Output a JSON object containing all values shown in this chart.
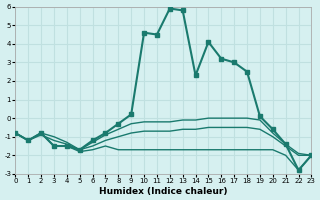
{
  "xlabel": "Humidex (Indice chaleur)",
  "ylabel": "",
  "background_color": "#d6f0f0",
  "grid_color": "#c0e0e0",
  "line_color": "#1a7a6e",
  "xlim": [
    0,
    23
  ],
  "ylim": [
    -3,
    6
  ],
  "xticks": [
    0,
    1,
    2,
    3,
    4,
    5,
    6,
    7,
    8,
    9,
    10,
    11,
    12,
    13,
    14,
    15,
    16,
    17,
    18,
    19,
    20,
    21,
    22,
    23
  ],
  "yticks": [
    -3,
    -2,
    -1,
    0,
    1,
    2,
    3,
    4,
    5,
    6
  ],
  "series": [
    {
      "x": [
        0,
        1,
        2,
        3,
        4,
        5,
        6,
        7,
        8,
        9,
        10,
        11,
        12,
        13,
        14,
        15,
        16,
        17,
        18,
        19,
        20,
        21,
        22,
        23
      ],
      "y": [
        -0.8,
        -1.2,
        -0.8,
        -1.5,
        -1.5,
        -1.7,
        -1.2,
        -0.8,
        -0.3,
        0.2,
        4.6,
        4.5,
        5.9,
        5.8,
        2.3,
        4.1,
        3.2,
        3.0,
        2.5,
        0.1,
        -0.6,
        -1.4,
        -2.8,
        -2.0
      ],
      "marker": "s",
      "markersize": 3,
      "linestyle": "-",
      "linewidth": 1.5
    },
    {
      "x": [
        0,
        1,
        2,
        3,
        4,
        5,
        6,
        7,
        8,
        9,
        10,
        11,
        12,
        13,
        14,
        15,
        16,
        17,
        18,
        19,
        20,
        21,
        22,
        23
      ],
      "y": [
        -0.8,
        -1.2,
        -0.8,
        -1.0,
        -1.3,
        -1.7,
        -1.3,
        -0.9,
        -0.6,
        -0.3,
        -0.2,
        -0.2,
        -0.2,
        -0.1,
        -0.1,
        0.0,
        0.0,
        0.0,
        0.0,
        -0.1,
        -0.8,
        -1.4,
        -1.9,
        -2.0
      ],
      "marker": null,
      "markersize": 0,
      "linestyle": "-",
      "linewidth": 1.0
    },
    {
      "x": [
        0,
        1,
        2,
        3,
        4,
        5,
        6,
        7,
        8,
        9,
        10,
        11,
        12,
        13,
        14,
        15,
        16,
        17,
        18,
        19,
        20,
        21,
        22,
        23
      ],
      "y": [
        -0.8,
        -1.2,
        -0.9,
        -1.2,
        -1.4,
        -1.7,
        -1.5,
        -1.2,
        -1.0,
        -0.8,
        -0.7,
        -0.7,
        -0.7,
        -0.6,
        -0.6,
        -0.5,
        -0.5,
        -0.5,
        -0.5,
        -0.6,
        -1.0,
        -1.5,
        -2.0,
        -2.0
      ],
      "marker": null,
      "markersize": 0,
      "linestyle": "-",
      "linewidth": 1.0
    },
    {
      "x": [
        0,
        1,
        2,
        3,
        4,
        5,
        6,
        7,
        8,
        9,
        10,
        11,
        12,
        13,
        14,
        15,
        16,
        17,
        18,
        19,
        20,
        21,
        22,
        23
      ],
      "y": [
        -0.8,
        -1.2,
        -0.8,
        -1.5,
        -1.5,
        -1.8,
        -1.7,
        -1.5,
        -1.7,
        -1.7,
        -1.7,
        -1.7,
        -1.7,
        -1.7,
        -1.7,
        -1.7,
        -1.7,
        -1.7,
        -1.7,
        -1.7,
        -1.7,
        -2.0,
        -2.8,
        -2.0
      ],
      "marker": null,
      "markersize": 0,
      "linestyle": "-",
      "linewidth": 1.0
    }
  ]
}
